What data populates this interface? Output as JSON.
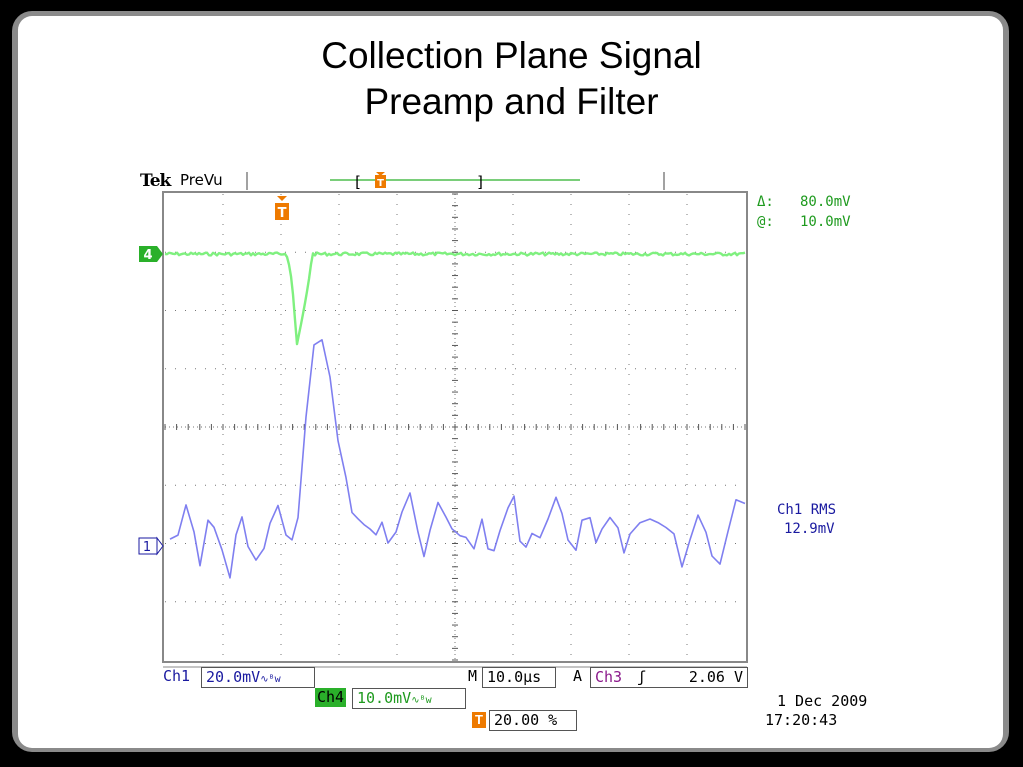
{
  "slide": {
    "title_line1": "Collection Plane Signal",
    "title_line2": "Preamp and Filter"
  },
  "scope": {
    "brand": "Tek",
    "mode": "PreVu",
    "bracket_left": "[",
    "bracket_right": "]",
    "trigger_letter": "T",
    "cursor": {
      "delta_label": "Δ:",
      "delta_value": "80.0mV",
      "at_label": "@:",
      "at_value": "10.0mV"
    },
    "measurement": {
      "label": "Ch1 RMS",
      "value": "12.9mV"
    },
    "channel_markers": {
      "ch4": "4",
      "ch1": "1"
    },
    "bottom": {
      "ch1_label": "Ch1",
      "ch1_scale": "20.0mV",
      "bw_symbol": "∿ᴮw",
      "m_label": "M",
      "timebase": "10.0µs",
      "a_label": "A",
      "trig_channel": "Ch3",
      "trig_slope": "ʃ",
      "trig_level": "2.06 V",
      "ch4_label": "Ch4",
      "ch4_scale": "10.0mV",
      "trig_pos": "20.00 %",
      "date": "1 Dec  2009",
      "time": "17:20:43"
    },
    "colors": {
      "ch1": "#7f7ff0",
      "ch4": "#7ff07f",
      "trigger": "#ee7a00",
      "readout_green": "#1e9a1e",
      "readout_blue": "#1a1aa0"
    }
  }
}
